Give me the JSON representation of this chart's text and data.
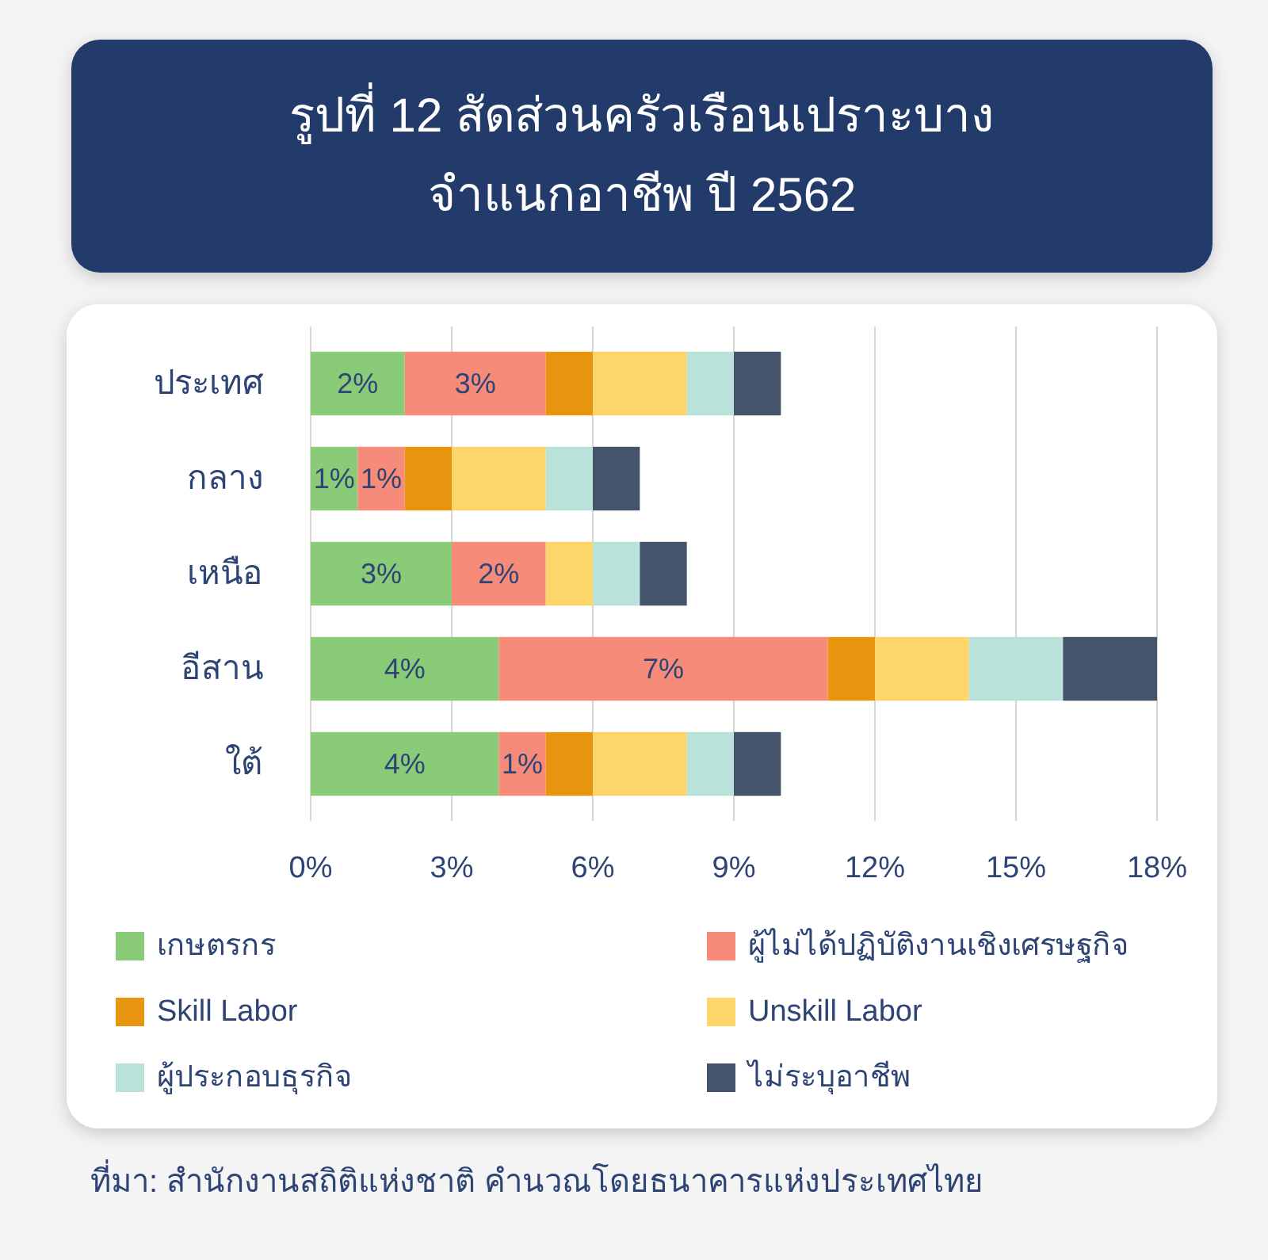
{
  "chart_data": {
    "type": "bar",
    "orientation": "horizontal",
    "stacked": true,
    "title": "รูปที่ 12 สัดส่วนครัวเรือนเปราะบาง\nจำแนกอาชีพ ปี 2562",
    "categories": [
      "ประเทศ",
      "กลาง",
      "เหนือ",
      "อีสาน",
      "ใต้"
    ],
    "series": [
      {
        "name": "เกษตรกร",
        "color": "#8acb78",
        "values": [
          2,
          1,
          3,
          4,
          4
        ],
        "value_labels": [
          "2%",
          "1%",
          "3%",
          "4%",
          "4%"
        ]
      },
      {
        "name": "ผู้ไม่ได้ปฏิบัติงานเชิงเศรษฐกิจ",
        "color": "#f58b78",
        "values": [
          3,
          1,
          2,
          7,
          1
        ],
        "value_labels": [
          "3%",
          "1%",
          "2%",
          "7%",
          "1%"
        ]
      },
      {
        "name": "Skill Labor",
        "color": "#e8960f",
        "values": [
          1,
          1,
          0,
          1,
          1
        ]
      },
      {
        "name": "Unskill Labor",
        "color": "#fdd66b",
        "values": [
          2,
          2,
          1,
          2,
          2
        ]
      },
      {
        "name": "ผู้ประกอบธุรกิจ",
        "color": "#b9e2da",
        "values": [
          1,
          1,
          1,
          2,
          1
        ]
      },
      {
        "name": "ไม่ระบุอาชีพ",
        "color": "#45546b",
        "values": [
          1,
          1,
          1,
          2,
          1
        ]
      }
    ],
    "xlim": [
      0,
      18
    ],
    "xticks": [
      {
        "value": 0,
        "label": "0%"
      },
      {
        "value": 3,
        "label": "3%"
      },
      {
        "value": 6,
        "label": "6%"
      },
      {
        "value": 9,
        "label": "9%"
      },
      {
        "value": 12,
        "label": "12%"
      },
      {
        "value": 15,
        "label": "15%"
      },
      {
        "value": 18,
        "label": "18%"
      }
    ],
    "grid": "x",
    "legend": "bottom",
    "annotations": [
      "ที่มา: สำนักงานสถิติแห่งชาติ คำนวณโดยธนาคารแห่งประเทศไทย"
    ]
  }
}
